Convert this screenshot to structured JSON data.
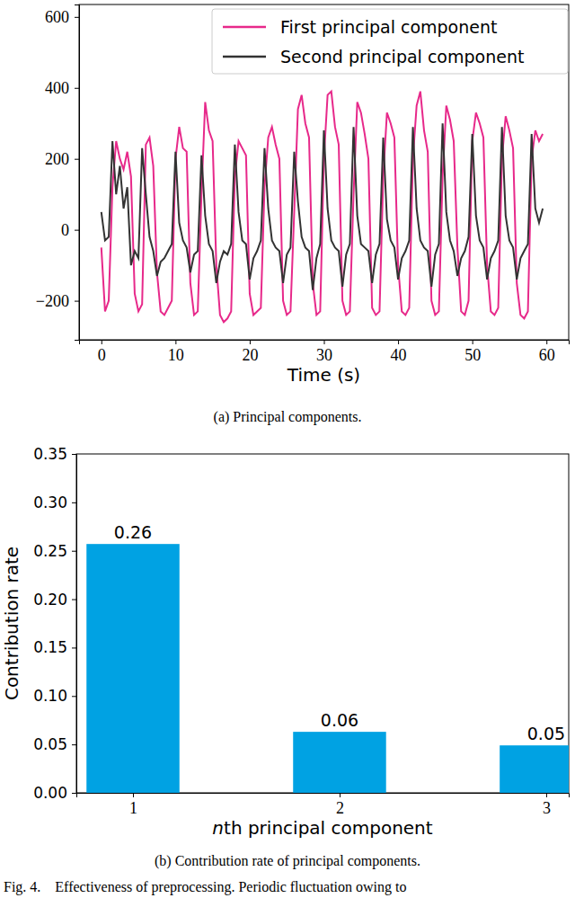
{
  "chart_data": [
    {
      "type": "line",
      "title": "(a) Principal components.",
      "xlabel": "Time (s)",
      "x": [
        0,
        0.5,
        1,
        1.5,
        2,
        2.5,
        3,
        3.5,
        4,
        4.5,
        5,
        5.5,
        6,
        6.5,
        7,
        7.5,
        8,
        8.5,
        9,
        9.5,
        10,
        10.5,
        11,
        11.5,
        12,
        12.5,
        13,
        13.5,
        14,
        14.5,
        15,
        15.5,
        16,
        16.5,
        17,
        17.5,
        18,
        18.5,
        19,
        19.5,
        20,
        20.5,
        21,
        21.5,
        22,
        22.5,
        23,
        23.5,
        24,
        24.5,
        25,
        25.5,
        26,
        26.5,
        27,
        27.5,
        28,
        28.5,
        29,
        29.5,
        30,
        30.5,
        31,
        31.5,
        32,
        32.5,
        33,
        33.5,
        34,
        34.5,
        35,
        35.5,
        36,
        36.5,
        37,
        37.5,
        38,
        38.5,
        39,
        39.5,
        40,
        40.5,
        41,
        41.5,
        42,
        42.5,
        43,
        43.5,
        44,
        44.5,
        45,
        45.5,
        46,
        46.5,
        47,
        47.5,
        48,
        48.5,
        49,
        49.5,
        50,
        50.5,
        51,
        51.5,
        52,
        52.5,
        53,
        53.5,
        54,
        54.5,
        55,
        55.5,
        56,
        56.5,
        57,
        57.5,
        58,
        58.5,
        59,
        59.5
      ],
      "series": [
        {
          "name": "First principal component",
          "color": "#e7298a",
          "values": [
            -50,
            -230,
            -200,
            120,
            250,
            200,
            170,
            220,
            150,
            -180,
            -230,
            -210,
            240,
            260,
            180,
            -120,
            -230,
            -240,
            -220,
            -200,
            200,
            290,
            230,
            220,
            -150,
            -240,
            -230,
            100,
            360,
            280,
            250,
            -100,
            -240,
            -260,
            -250,
            -230,
            150,
            250,
            230,
            210,
            -180,
            -240,
            -230,
            -220,
            120,
            260,
            290,
            240,
            200,
            -200,
            -240,
            -230,
            50,
            340,
            380,
            300,
            260,
            -150,
            -240,
            -230,
            200,
            380,
            390,
            290,
            240,
            -200,
            -240,
            -230,
            100,
            360,
            330,
            270,
            200,
            -220,
            -240,
            -230,
            150,
            330,
            300,
            260,
            -100,
            -230,
            -240,
            -220,
            200,
            350,
            390,
            280,
            220,
            -200,
            -240,
            -230,
            150,
            350,
            310,
            250,
            -50,
            -230,
            -240,
            -200,
            250,
            330,
            300,
            260,
            -100,
            -230,
            -240,
            -220,
            200,
            320,
            280,
            230,
            -150,
            -240,
            -250,
            -230,
            200,
            280,
            250,
            270
          ]
        },
        {
          "name": "Second principal component",
          "color": "#333333",
          "values": [
            50,
            -30,
            -20,
            250,
            100,
            180,
            60,
            120,
            -100,
            -60,
            -80,
            230,
            100,
            -20,
            -60,
            -130,
            -90,
            -80,
            -60,
            -40,
            220,
            20,
            -30,
            -50,
            -120,
            -70,
            -60,
            210,
            40,
            -40,
            -60,
            -150,
            -90,
            -60,
            -70,
            -40,
            240,
            50,
            -30,
            -40,
            -140,
            -80,
            -60,
            -30,
            230,
            60,
            -30,
            -50,
            -60,
            -150,
            -70,
            -50,
            220,
            80,
            -20,
            -50,
            -60,
            -170,
            -80,
            -40,
            280,
            60,
            -30,
            -50,
            -60,
            -160,
            -70,
            -40,
            290,
            40,
            -40,
            -50,
            -60,
            -150,
            -70,
            -40,
            260,
            30,
            -30,
            -50,
            -140,
            -80,
            -60,
            -30,
            290,
            60,
            -30,
            -50,
            -60,
            -160,
            -70,
            -40,
            300,
            50,
            -30,
            -60,
            -130,
            -80,
            -60,
            -20,
            270,
            40,
            -30,
            -50,
            -140,
            -80,
            -60,
            -30,
            290,
            40,
            -30,
            -50,
            -140,
            -80,
            -60,
            -40,
            270,
            60,
            20,
            60
          ]
        }
      ],
      "xlim": [
        -3,
        63
      ],
      "ylim": [
        -310,
        635
      ],
      "xticks": [
        0,
        10,
        20,
        30,
        40,
        50,
        60
      ],
      "yticks": [
        {
          "value": -200,
          "label": "−200"
        },
        0,
        200,
        400,
        600
      ],
      "legend": "upper right",
      "grid": false
    },
    {
      "type": "bar",
      "title": "(b) Contribution rate of principal components.",
      "xlabel": "nth principal component",
      "ylabel": "Contribution rate",
      "categories": [
        "1",
        "2",
        "3"
      ],
      "values": [
        0.257,
        0.063,
        0.049
      ],
      "value_labels": [
        "0.26",
        "0.06",
        "0.05"
      ],
      "data_labels": true,
      "color": "#00a2e3",
      "ylim": [
        0,
        0.35
      ],
      "yticks": [
        {
          "value": 0,
          "label": "0.00"
        },
        {
          "value": 0.05,
          "label": "0.05"
        },
        {
          "value": 0.1,
          "label": "0.10"
        },
        {
          "value": 0.15,
          "label": "0.15"
        },
        {
          "value": 0.2,
          "label": "0.20"
        },
        {
          "value": 0.25,
          "label": "0.25"
        },
        {
          "value": 0.3,
          "label": "0.30"
        },
        {
          "value": 0.35,
          "label": "0.35"
        }
      ],
      "grid": false
    }
  ],
  "caption": "Fig. 4.    Effectiveness of preprocessing. Periodic fluctuation owing to"
}
